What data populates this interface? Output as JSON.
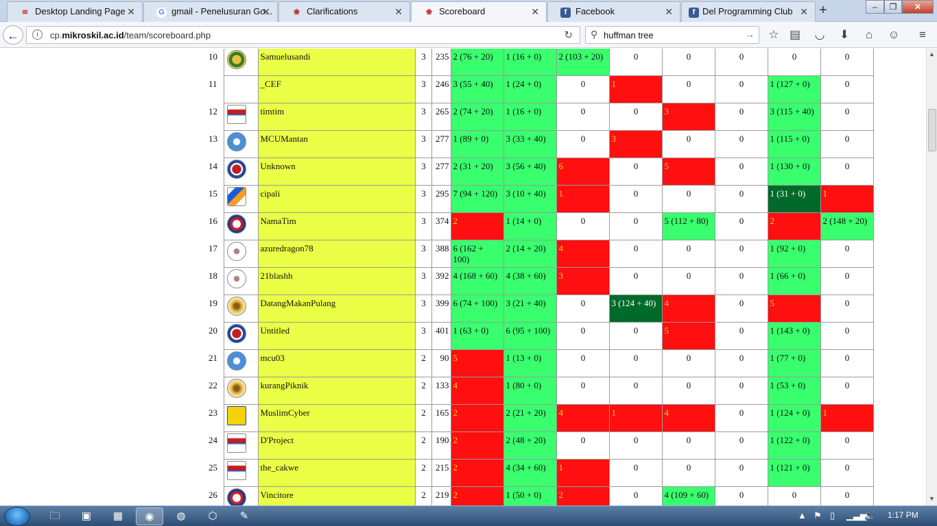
{
  "browser": {
    "tabs": [
      {
        "title": "Desktop Landing Page",
        "icon": "wifi-icon",
        "color": "#d0342c",
        "active": false
      },
      {
        "title": "gmail - Penelusuran Go...",
        "icon": "google-icon",
        "color": "#4285f4",
        "active": false
      },
      {
        "title": "Clarifications",
        "icon": "mikroskil-icon",
        "color": "#c21f1f",
        "active": false
      },
      {
        "title": "Scoreboard",
        "icon": "mikroskil-icon",
        "color": "#c21f1f",
        "active": true
      },
      {
        "title": "Facebook",
        "icon": "facebook-icon",
        "color": "#3b5998",
        "active": false
      },
      {
        "title": "Del Programming Club",
        "icon": "facebook-icon",
        "color": "#3b5998",
        "active": false
      }
    ],
    "url_prefix": "cp.",
    "url_domain": "mikroskil.ac.id",
    "url_path": "/team/scoreboard.php",
    "search_value": "huffman tree"
  },
  "scoreboard": {
    "colors": {
      "green": "#39ff6e",
      "red": "#ff0f0f",
      "dark_green": "#006a2b",
      "name_bg": "#eaff45"
    },
    "rows": [
      {
        "rank": "10",
        "logo": "green-gold-seal-logo",
        "name": "Samuelusandi",
        "solved": "3",
        "penalty": "235",
        "cells": [
          [
            "2 (76 + 20)",
            "g"
          ],
          [
            "1 (16 + 0)",
            "g"
          ],
          [
            "2 (103 + 20)",
            "g"
          ],
          [
            "0",
            "w"
          ],
          [
            "0",
            "w"
          ],
          [
            "0",
            "w"
          ],
          [
            "0",
            "w"
          ],
          [
            "0",
            "w"
          ]
        ]
      },
      {
        "rank": "11",
        "logo": "umn-logo",
        "name": "_CEF",
        "solved": "3",
        "penalty": "246",
        "cells": [
          [
            "3 (55 + 40)",
            "g"
          ],
          [
            "1 (24 + 0)",
            "g"
          ],
          [
            "0",
            "w"
          ],
          [
            "1",
            "r"
          ],
          [
            "0",
            "w"
          ],
          [
            "0",
            "w"
          ],
          [
            "1 (127 + 0)",
            "g"
          ],
          [
            "0",
            "w"
          ]
        ]
      },
      {
        "rank": "12",
        "logo": "stmik-mikroskil-logo",
        "name": "timtim",
        "solved": "3",
        "penalty": "265",
        "cells": [
          [
            "2 (74 + 20)",
            "g"
          ],
          [
            "1 (16 + 0)",
            "g"
          ],
          [
            "0",
            "w"
          ],
          [
            "0",
            "w"
          ],
          [
            "3",
            "r"
          ],
          [
            "0",
            "w"
          ],
          [
            "3 (115 + 40)",
            "g"
          ],
          [
            "0",
            "w"
          ]
        ]
      },
      {
        "rank": "13",
        "logo": "mcu-logo",
        "name": "MCUMantan",
        "solved": "3",
        "penalty": "277",
        "cells": [
          [
            "1 (89 + 0)",
            "g"
          ],
          [
            "3 (33 + 40)",
            "g"
          ],
          [
            "0",
            "w"
          ],
          [
            "3",
            "r"
          ],
          [
            "0",
            "w"
          ],
          [
            "0",
            "w"
          ],
          [
            "1 (115 + 0)",
            "g"
          ],
          [
            "0",
            "w"
          ]
        ]
      },
      {
        "rank": "14",
        "logo": "red-blue-circle-logo",
        "name": "Unknown",
        "solved": "3",
        "penalty": "277",
        "cells": [
          [
            "2 (31 + 20)",
            "g"
          ],
          [
            "3 (56 + 40)",
            "g"
          ],
          [
            "6",
            "r"
          ],
          [
            "0",
            "w"
          ],
          [
            "5",
            "r"
          ],
          [
            "0",
            "w"
          ],
          [
            "1 (130 + 0)",
            "g"
          ],
          [
            "0",
            "w"
          ]
        ]
      },
      {
        "rank": "15",
        "logo": "blue-orange-chevron-logo",
        "name": "cipali",
        "solved": "3",
        "penalty": "295",
        "cells": [
          [
            "7 (94 + 120)",
            "g"
          ],
          [
            "3 (10 + 40)",
            "g"
          ],
          [
            "1",
            "r"
          ],
          [
            "0",
            "w"
          ],
          [
            "0",
            "w"
          ],
          [
            "0",
            "w"
          ],
          [
            "1 (31 + 0)",
            "d"
          ],
          [
            "1",
            "r"
          ]
        ]
      },
      {
        "rank": "16",
        "logo": "eagle-red-logo",
        "name": "NamaTim",
        "solved": "3",
        "penalty": "374",
        "cells": [
          [
            "2",
            "r"
          ],
          [
            "1 (14 + 0)",
            "g"
          ],
          [
            "0",
            "w"
          ],
          [
            "0",
            "w"
          ],
          [
            "5 (112 + 80)",
            "g"
          ],
          [
            "0",
            "w"
          ],
          [
            "2",
            "r"
          ],
          [
            "2 (148 + 20)",
            "g"
          ]
        ]
      },
      {
        "rank": "17",
        "logo": "crest-logo",
        "name": "azuredragon78",
        "solved": "3",
        "penalty": "388",
        "cells": [
          [
            "6 (162 + 100)",
            "g"
          ],
          [
            "2 (14 + 20)",
            "g"
          ],
          [
            "4",
            "r"
          ],
          [
            "0",
            "w"
          ],
          [
            "0",
            "w"
          ],
          [
            "0",
            "w"
          ],
          [
            "1 (92 + 0)",
            "g"
          ],
          [
            "0",
            "w"
          ]
        ]
      },
      {
        "rank": "18",
        "logo": "crest-logo",
        "name": "21blashh",
        "solved": "3",
        "penalty": "392",
        "cells": [
          [
            "4 (168 + 60)",
            "g"
          ],
          [
            "4 (38 + 60)",
            "g"
          ],
          [
            "3",
            "r"
          ],
          [
            "0",
            "w"
          ],
          [
            "0",
            "w"
          ],
          [
            "0",
            "w"
          ],
          [
            "1 (66 + 0)",
            "g"
          ],
          [
            "0",
            "w"
          ]
        ]
      },
      {
        "rank": "19",
        "logo": "gold-star-logo",
        "name": "DatangMakanPulang",
        "solved": "3",
        "penalty": "399",
        "cells": [
          [
            "6 (74 + 100)",
            "g"
          ],
          [
            "3 (21 + 40)",
            "g"
          ],
          [
            "0",
            "w"
          ],
          [
            "3 (124 + 40)",
            "d"
          ],
          [
            "4",
            "r"
          ],
          [
            "0",
            "w"
          ],
          [
            "5",
            "r"
          ],
          [
            "0",
            "w"
          ]
        ]
      },
      {
        "rank": "20",
        "logo": "red-blue-circle-logo",
        "name": "Untitled",
        "solved": "3",
        "penalty": "401",
        "cells": [
          [
            "1 (63 + 0)",
            "g"
          ],
          [
            "6 (95 + 100)",
            "g"
          ],
          [
            "0",
            "w"
          ],
          [
            "0",
            "w"
          ],
          [
            "5",
            "r"
          ],
          [
            "0",
            "w"
          ],
          [
            "1 (143 + 0)",
            "g"
          ],
          [
            "0",
            "w"
          ]
        ]
      },
      {
        "rank": "21",
        "logo": "mcu-logo",
        "name": "mcu03",
        "solved": "2",
        "penalty": "90",
        "cells": [
          [
            "5",
            "r"
          ],
          [
            "1 (13 + 0)",
            "g"
          ],
          [
            "0",
            "w"
          ],
          [
            "0",
            "w"
          ],
          [
            "0",
            "w"
          ],
          [
            "0",
            "w"
          ],
          [
            "1 (77 + 0)",
            "g"
          ],
          [
            "0",
            "w"
          ]
        ]
      },
      {
        "rank": "22",
        "logo": "gold-star-logo",
        "name": "kurangPiknik",
        "solved": "2",
        "penalty": "133",
        "cells": [
          [
            "4",
            "r"
          ],
          [
            "1 (80 + 0)",
            "g"
          ],
          [
            "0",
            "w"
          ],
          [
            "0",
            "w"
          ],
          [
            "0",
            "w"
          ],
          [
            "0",
            "w"
          ],
          [
            "1 (53 + 0)",
            "g"
          ],
          [
            "0",
            "w"
          ]
        ]
      },
      {
        "rank": "23",
        "logo": "yellow-shield-logo",
        "name": "MuslimCyber",
        "solved": "2",
        "penalty": "165",
        "cells": [
          [
            "2",
            "r"
          ],
          [
            "2 (21 + 20)",
            "g"
          ],
          [
            "4",
            "r"
          ],
          [
            "1",
            "r"
          ],
          [
            "4",
            "r"
          ],
          [
            "0",
            "w"
          ],
          [
            "1 (124 + 0)",
            "g"
          ],
          [
            "1",
            "r"
          ]
        ]
      },
      {
        "rank": "24",
        "logo": "stmik-mikroskil-logo",
        "name": "D'Project",
        "solved": "2",
        "penalty": "190",
        "cells": [
          [
            "2",
            "r"
          ],
          [
            "2 (48 + 20)",
            "g"
          ],
          [
            "0",
            "w"
          ],
          [
            "0",
            "w"
          ],
          [
            "0",
            "w"
          ],
          [
            "0",
            "w"
          ],
          [
            "1 (122 + 0)",
            "g"
          ],
          [
            "0",
            "w"
          ]
        ]
      },
      {
        "rank": "25",
        "logo": "stmik-mikroskil-logo",
        "name": "the_cakwe",
        "solved": "2",
        "penalty": "215",
        "cells": [
          [
            "2",
            "r"
          ],
          [
            "4 (34 + 60)",
            "g"
          ],
          [
            "1",
            "r"
          ],
          [
            "0",
            "w"
          ],
          [
            "0",
            "w"
          ],
          [
            "0",
            "w"
          ],
          [
            "1 (121 + 0)",
            "g"
          ],
          [
            "0",
            "w"
          ]
        ]
      },
      {
        "rank": "26",
        "logo": "eagle-red-logo",
        "name": "Vincitore",
        "solved": "2",
        "penalty": "219",
        "cells": [
          [
            "2",
            "r"
          ],
          [
            "1 (50 + 0)",
            "g"
          ],
          [
            "2",
            "r"
          ],
          [
            "0",
            "w"
          ],
          [
            "4 (109 + 60)",
            "g"
          ],
          [
            "0",
            "w"
          ],
          [
            "0",
            "w"
          ],
          [
            "0",
            "w"
          ]
        ]
      }
    ]
  },
  "taskbar": {
    "time": "1:17 PM",
    "items": [
      "explorer-icon",
      "app-icon",
      "media-icon",
      "firefox-icon",
      "chrome-icon",
      "virtualbox-icon",
      "paint-icon"
    ]
  }
}
